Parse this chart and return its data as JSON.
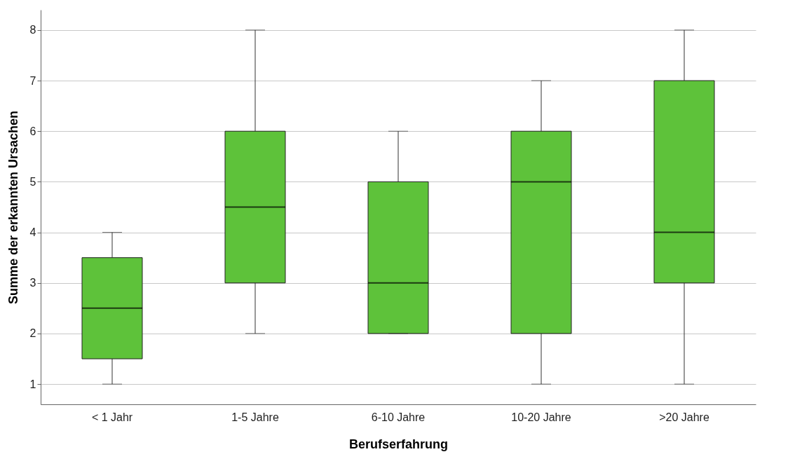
{
  "chart_data": {
    "type": "box",
    "xlabel": "Berufserfahrung",
    "ylabel": "Summe der erkannten Ursachen",
    "categories": [
      "< 1 Jahr",
      "1-5 Jahre",
      "6-10 Jahre",
      "10-20 Jahre",
      ">20 Jahre"
    ],
    "boxes": [
      {
        "low": 1,
        "q1": 1.5,
        "median": 2.5,
        "q3": 3.5,
        "high": 4
      },
      {
        "low": 2,
        "q1": 3,
        "median": 4.5,
        "q3": 6,
        "high": 8
      },
      {
        "low": 2,
        "q1": 2,
        "median": 3,
        "q3": 5,
        "high": 6
      },
      {
        "low": 1,
        "q1": 2,
        "median": 5,
        "q3": 6,
        "high": 7
      },
      {
        "low": 1,
        "q1": 3,
        "median": 4,
        "q3": 7,
        "high": 8
      }
    ],
    "color": "#5ec23a",
    "ylim": [
      0.6,
      8.4
    ],
    "yticks": [
      1,
      2,
      3,
      4,
      5,
      6,
      7,
      8
    ],
    "grid": "y"
  }
}
